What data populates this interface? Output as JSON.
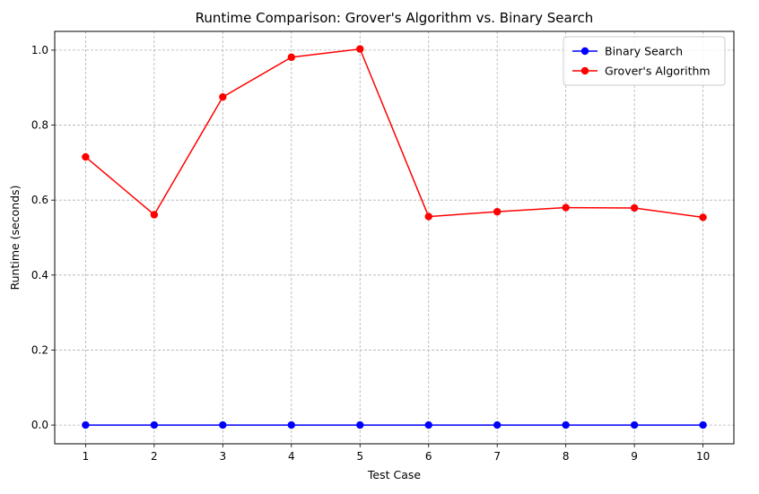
{
  "chart_data": {
    "type": "line",
    "title": "Runtime Comparison: Grover's Algorithm vs. Binary Search",
    "xlabel": "Test Case",
    "ylabel": "Runtime (seconds)",
    "x": [
      1,
      2,
      3,
      4,
      5,
      6,
      7,
      8,
      9,
      10
    ],
    "xticks": [
      1,
      2,
      3,
      4,
      5,
      6,
      7,
      8,
      9,
      10
    ],
    "yticks": [
      0.0,
      0.2,
      0.4,
      0.6,
      0.8,
      1.0
    ],
    "xlim": [
      0.55,
      10.45
    ],
    "ylim": [
      -0.05,
      1.05
    ],
    "grid": true,
    "grid_style": "dashed",
    "legend_position": "top-right",
    "series": [
      {
        "name": "Binary Search",
        "color": "#0000ff",
        "marker": "circle",
        "values": [
          0.0,
          0.0,
          0.0,
          0.0,
          0.0,
          0.0,
          0.0,
          0.0,
          0.0,
          0.0
        ]
      },
      {
        "name": "Grover's Algorithm",
        "color": "#ff0000",
        "marker": "circle",
        "values": [
          0.715,
          0.561,
          0.875,
          0.981,
          1.003,
          0.556,
          0.569,
          0.58,
          0.579,
          0.554
        ]
      }
    ]
  }
}
